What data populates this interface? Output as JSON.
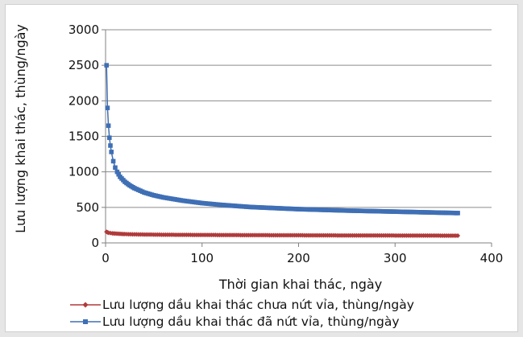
{
  "chart_data": {
    "type": "line",
    "xlabel": "Thời gian khai thác, ngày",
    "ylabel": "Lưu lượng khai thác, thùng/ngày",
    "xlim": [
      0,
      400
    ],
    "ylim": [
      0,
      3000
    ],
    "xticks": [
      0,
      100,
      200,
      300,
      400
    ],
    "yticks": [
      0,
      500,
      1000,
      1500,
      2000,
      2500,
      3000
    ],
    "grid": "horizontal",
    "legend": "bottom",
    "series": [
      {
        "name": "Lưu lượng dầu khai thác chưa nứt vỉa, thùng/ngày",
        "color": "#b03a3a",
        "marker": "diamond",
        "x": [
          1,
          2,
          3,
          5,
          7,
          10,
          15,
          20,
          30,
          40,
          60,
          80,
          100,
          150,
          200,
          250,
          300,
          365
        ],
        "y": [
          155,
          148,
          143,
          138,
          135,
          131,
          127,
          124,
          120,
          118,
          115,
          113,
          112,
          109,
          107,
          105,
          104,
          102
        ]
      },
      {
        "name": "Lưu lượng dầu khai thác đã nứt vỉa, thùng/ngày",
        "color": "#3f6fb5",
        "marker": "square",
        "x": [
          1,
          2,
          3,
          4,
          5,
          6,
          8,
          10,
          12,
          15,
          20,
          25,
          30,
          40,
          50,
          60,
          80,
          100,
          120,
          150,
          200,
          250,
          300,
          365
        ],
        "y": [
          2500,
          1900,
          1650,
          1480,
          1370,
          1280,
          1150,
          1060,
          1000,
          930,
          860,
          810,
          770,
          710,
          670,
          640,
          595,
          560,
          535,
          505,
          475,
          455,
          440,
          420
        ]
      }
    ]
  }
}
